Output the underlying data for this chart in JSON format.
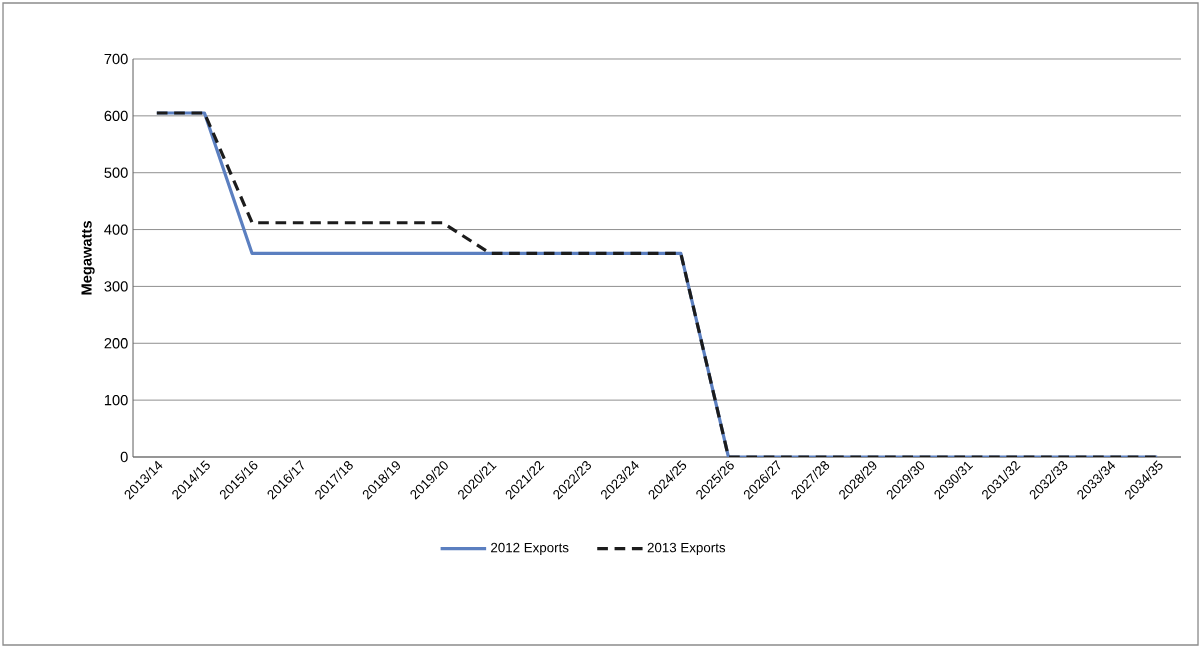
{
  "chart_data": {
    "type": "line",
    "ylabel": "Megawatts",
    "categories": [
      "2013/14",
      "2014/15",
      "2015/16",
      "2016/17",
      "2017/18",
      "2018/19",
      "2019/20",
      "2020/21",
      "2021/22",
      "2022/23",
      "2023/24",
      "2024/25",
      "2025/26",
      "2026/27",
      "2027/28",
      "2028/29",
      "2029/30",
      "2030/31",
      "2031/32",
      "2032/33",
      "2033/34",
      "2034/35"
    ],
    "series": [
      {
        "name": "2012 Exports",
        "color": "#5b7fc0",
        "line_style": "solid",
        "values": [
          605,
          605,
          358,
          358,
          358,
          358,
          358,
          358,
          358,
          358,
          358,
          358,
          0,
          0,
          0,
          0,
          0,
          0,
          0,
          0,
          0,
          0
        ]
      },
      {
        "name": "2013 Exports",
        "color": "#1c1c1c",
        "line_style": "dashed",
        "values": [
          605,
          605,
          412,
          412,
          412,
          412,
          412,
          358,
          358,
          358,
          358,
          358,
          0,
          0,
          0,
          0,
          0,
          0,
          0,
          0,
          0,
          0
        ]
      }
    ],
    "ylim": [
      0,
      700
    ],
    "yticks": [
      0,
      100,
      200,
      300,
      400,
      500,
      600,
      700
    ],
    "grid": "y",
    "legend": "bottom",
    "marker": "none"
  }
}
